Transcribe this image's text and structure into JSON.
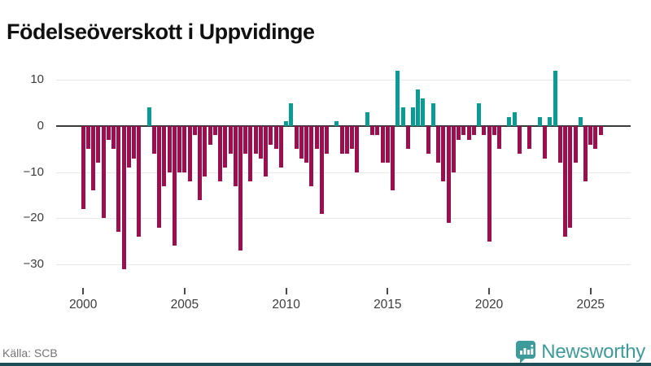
{
  "title": "Födelseöverskott i Uppvidinge",
  "footer": {
    "source": "Källa: SCB",
    "brand": "Newsworthy"
  },
  "chart_data": {
    "type": "bar",
    "title": "Födelseöverskott i Uppvidinge",
    "frequency": "quarterly",
    "start": "2000-Q1",
    "end": "2025-Q3",
    "values": [
      -18,
      -5,
      -14,
      -8,
      -20,
      -3,
      -5,
      -23,
      -31,
      -9,
      -7,
      -24,
      0,
      4,
      -6,
      -22,
      -13,
      -10,
      -26,
      -10,
      -10,
      -12,
      -2,
      -16,
      -11,
      -4,
      -2,
      -12,
      -9,
      -6,
      -13,
      -27,
      -6,
      -12,
      -6,
      -7,
      -11,
      -4,
      -5,
      -9,
      1,
      5,
      -5,
      -7,
      -8,
      -13,
      -5,
      -19,
      -6,
      0,
      1,
      -6,
      -6,
      -5,
      -10,
      0,
      3,
      -2,
      -2,
      -8,
      -8,
      -14,
      12,
      4,
      -5,
      4,
      8,
      6,
      -6,
      5,
      -8,
      -12,
      -21,
      -10,
      -3,
      -2,
      -3,
      -2,
      5,
      -2,
      -25,
      -2,
      -5,
      0,
      2,
      3,
      -6,
      0,
      -5,
      0,
      2,
      -7,
      2,
      12,
      -8,
      -24,
      -22,
      -8,
      2,
      -12,
      -4,
      -5,
      -2
    ],
    "ylim": [
      -33,
      13
    ],
    "yticks": [
      10,
      0,
      -10,
      -20,
      -30
    ],
    "xticks": [
      2000,
      2005,
      2010,
      2015,
      2020,
      2025
    ],
    "grid": "horizontal",
    "legend": "none",
    "colors": {
      "positive": "#089c95",
      "negative": "#9d0e4f",
      "zero_line": "#3a3a3a",
      "gridline": "#e8e8e8",
      "brand_teal": "#3d9b9b",
      "bottom_bar": "#1d4d57"
    }
  }
}
